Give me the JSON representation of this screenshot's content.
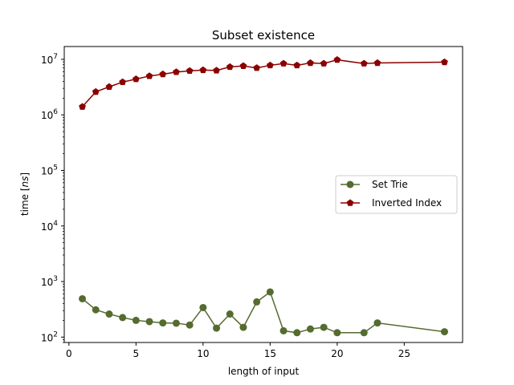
{
  "chart_data": {
    "type": "line",
    "title": "Subset existence",
    "xlabel": "length of input",
    "ylabel_prefix": "time [",
    "ylabel_unit": "ns",
    "ylabel_suffix": "]",
    "yscale": "log",
    "xlim": [
      -0.35,
      29.35
    ],
    "ylim": [
      80,
      17000000
    ],
    "x_ticks": [
      0,
      5,
      10,
      15,
      20,
      25
    ],
    "y_ticks": [
      {
        "value": 100,
        "mantissa": "10",
        "exp": "2"
      },
      {
        "value": 1000,
        "mantissa": "10",
        "exp": "3"
      },
      {
        "value": 10000,
        "mantissa": "10",
        "exp": "4"
      },
      {
        "value": 100000,
        "mantissa": "10",
        "exp": "5"
      },
      {
        "value": 1000000,
        "mantissa": "10",
        "exp": "6"
      },
      {
        "value": 10000000,
        "mantissa": "10",
        "exp": "7"
      }
    ],
    "grid": false,
    "legend_position": "center-right",
    "series": [
      {
        "name": "Set Trie",
        "color": "#556b2f",
        "marker": "circle",
        "x": [
          1,
          2,
          3,
          4,
          5,
          6,
          7,
          8,
          9,
          10,
          11,
          12,
          13,
          14,
          15,
          16,
          17,
          18,
          19,
          20,
          22,
          23,
          28
        ],
        "y": [
          490,
          310,
          260,
          225,
          200,
          190,
          180,
          178,
          165,
          340,
          145,
          260,
          150,
          430,
          650,
          130,
          120,
          140,
          150,
          120,
          120,
          180,
          125
        ]
      },
      {
        "name": "Inverted Index",
        "color": "#8b0000",
        "marker": "pentagon",
        "x": [
          1,
          2,
          3,
          4,
          5,
          6,
          7,
          8,
          9,
          10,
          11,
          12,
          13,
          14,
          15,
          16,
          17,
          18,
          19,
          20,
          22,
          23,
          28
        ],
        "y": [
          1400000,
          2600000,
          3200000,
          3900000,
          4400000,
          5000000,
          5400000,
          5900000,
          6200000,
          6400000,
          6300000,
          7300000,
          7600000,
          7000000,
          7800000,
          8400000,
          7800000,
          8600000,
          8400000,
          9800000,
          8400000,
          8600000,
          8900000
        ]
      }
    ]
  }
}
